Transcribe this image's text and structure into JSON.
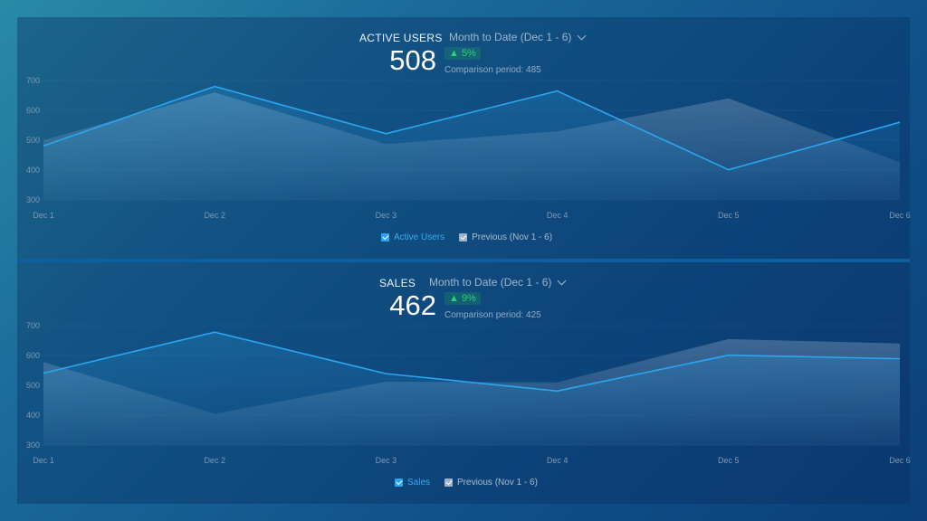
{
  "chart_data": [
    {
      "type": "area",
      "title": "ACTIVE USERS",
      "period": "Month to Date (Dec 1 - 6)",
      "value": "508",
      "change": "▲ 5%",
      "comparison": "Comparison period: 485",
      "categories": [
        "Dec 1",
        "Dec 2",
        "Dec 3",
        "Dec 4",
        "Dec 5",
        "Dec 6"
      ],
      "yticks": [
        "700",
        "600",
        "500",
        "400",
        "300"
      ],
      "ylim": [
        300,
        700
      ],
      "series": [
        {
          "name": "Active Users",
          "values": [
            481,
            680,
            522,
            665,
            401,
            560
          ]
        },
        {
          "name": "Previous (Nov 1 - 6)",
          "values": [
            500,
            660,
            487,
            530,
            640,
            426
          ]
        }
      ]
    },
    {
      "type": "area",
      "title": "SALES",
      "period": "Month to Date (Dec 1 - 6)",
      "value": "462",
      "change": "▲ 9%",
      "comparison": "Comparison period: 425",
      "categories": [
        "Dec 1",
        "Dec 2",
        "Dec 3",
        "Dec 4",
        "Dec 5",
        "Dec 6"
      ],
      "yticks": [
        "700",
        "600",
        "500",
        "400",
        "300"
      ],
      "ylim": [
        300,
        700
      ],
      "series": [
        {
          "name": "Sales",
          "values": [
            541,
            678,
            539,
            481,
            601,
            589
          ]
        },
        {
          "name": "Previous (Nov 1 - 6)",
          "values": [
            578,
            405,
            512,
            510,
            655,
            640
          ]
        }
      ]
    }
  ],
  "colors": {
    "current_line": "#2aa6f2",
    "previous_fill": "#8fa9c4",
    "positive": "#2ecf76"
  },
  "icons": {
    "dropdown": "chevron-down-icon",
    "checkbox": "checkbox-checked-icon"
  }
}
